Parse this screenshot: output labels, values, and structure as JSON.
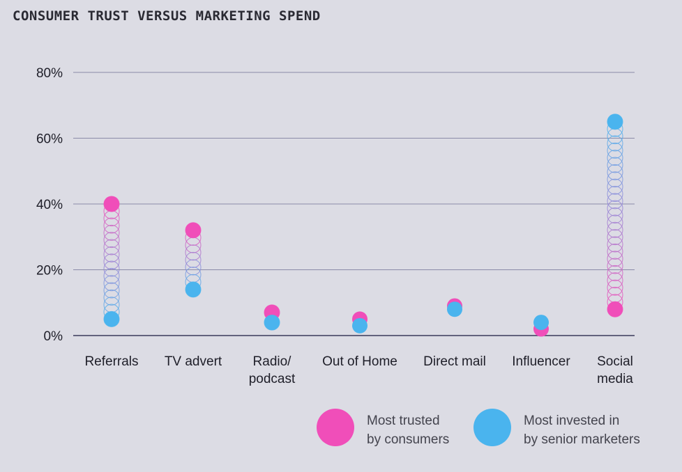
{
  "chart_data": {
    "type": "dot-range",
    "title": "CONSUMER TRUST VERSUS MARKETING SPEND",
    "categories": [
      "Referrals",
      "TV advert",
      "Radio/ podcast",
      "Out of Home",
      "Direct mail",
      "Influencer",
      "Social media"
    ],
    "category_label_lines": [
      [
        "Referrals"
      ],
      [
        "TV advert"
      ],
      [
        "Radio/",
        "podcast"
      ],
      [
        "Out of Home"
      ],
      [
        "Direct mail"
      ],
      [
        "Influencer"
      ],
      [
        "Social",
        "media"
      ]
    ],
    "series": [
      {
        "name": "Most trusted by consumers",
        "legend_lines": [
          "Most trusted",
          "by consumers"
        ],
        "color": "#f04eb9",
        "values": [
          40,
          32,
          7,
          5,
          9,
          2,
          8
        ]
      },
      {
        "name": "Most invested in by senior marketers",
        "legend_lines": [
          "Most invested in",
          "by senior marketers"
        ],
        "color": "#4ab4ee",
        "values": [
          5,
          14,
          4,
          3,
          8,
          4,
          65
        ]
      }
    ],
    "ylim": [
      0,
      80
    ],
    "yticks": [
      0,
      20,
      40,
      60,
      80
    ],
    "ytick_labels": [
      "0%",
      "20%",
      "40%",
      "60%",
      "80%"
    ],
    "grid": true,
    "legend": "bottom-right"
  }
}
